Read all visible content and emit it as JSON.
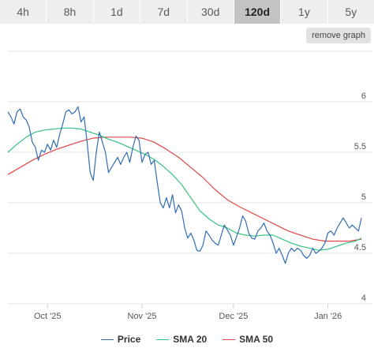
{
  "tabs": [
    {
      "label": "4h",
      "active": false
    },
    {
      "label": "8h",
      "active": false
    },
    {
      "label": "1d",
      "active": false
    },
    {
      "label": "7d",
      "active": false
    },
    {
      "label": "30d",
      "active": false
    },
    {
      "label": "120d",
      "active": true
    },
    {
      "label": "1y",
      "active": false
    },
    {
      "label": "5y",
      "active": false
    }
  ],
  "remove_graph_label": "remove graph",
  "chart_data": {
    "type": "line",
    "x_ticks": [
      {
        "label": "Oct '25",
        "t": 13
      },
      {
        "label": "Nov '25",
        "t": 44
      },
      {
        "label": "Dec '25",
        "t": 74
      },
      {
        "label": "Jan '26",
        "t": 105
      }
    ],
    "y_ticks": [
      4,
      4.5,
      5,
      5.5,
      6
    ],
    "ylim": [
      4,
      6.5
    ],
    "xlim": [
      0,
      117
    ],
    "grid": true,
    "legend_position": "bottom-center",
    "series": [
      {
        "name": "Price",
        "color": "#2f6db4",
        "points": [
          [
            0,
            5.9
          ],
          [
            1,
            5.85
          ],
          [
            2,
            5.78
          ],
          [
            3,
            5.9
          ],
          [
            4,
            5.93
          ],
          [
            5,
            5.85
          ],
          [
            6,
            5.82
          ],
          [
            7,
            5.75
          ],
          [
            8,
            5.6
          ],
          [
            9,
            5.55
          ],
          [
            10,
            5.42
          ],
          [
            11,
            5.52
          ],
          [
            12,
            5.5
          ],
          [
            13,
            5.58
          ],
          [
            14,
            5.52
          ],
          [
            15,
            5.62
          ],
          [
            16,
            5.55
          ],
          [
            17,
            5.68
          ],
          [
            18,
            5.78
          ],
          [
            19,
            5.9
          ],
          [
            20,
            5.92
          ],
          [
            21,
            5.88
          ],
          [
            22,
            5.9
          ],
          [
            23,
            5.95
          ],
          [
            24,
            5.8
          ],
          [
            25,
            5.85
          ],
          [
            26,
            5.6
          ],
          [
            27,
            5.3
          ],
          [
            28,
            5.22
          ],
          [
            29,
            5.5
          ],
          [
            30,
            5.7
          ],
          [
            31,
            5.6
          ],
          [
            32,
            5.5
          ],
          [
            33,
            5.3
          ],
          [
            34,
            5.35
          ],
          [
            35,
            5.4
          ],
          [
            36,
            5.45
          ],
          [
            37,
            5.38
          ],
          [
            38,
            5.45
          ],
          [
            39,
            5.5
          ],
          [
            40,
            5.4
          ],
          [
            41,
            5.55
          ],
          [
            42,
            5.66
          ],
          [
            43,
            5.62
          ],
          [
            44,
            5.4
          ],
          [
            45,
            5.48
          ],
          [
            46,
            5.5
          ],
          [
            47,
            5.38
          ],
          [
            48,
            5.42
          ],
          [
            49,
            5.2
          ],
          [
            50,
            5.0
          ],
          [
            51,
            4.95
          ],
          [
            52,
            5.05
          ],
          [
            53,
            4.95
          ],
          [
            54,
            5.08
          ],
          [
            55,
            4.9
          ],
          [
            56,
            4.98
          ],
          [
            57,
            4.92
          ],
          [
            58,
            4.75
          ],
          [
            59,
            4.65
          ],
          [
            60,
            4.7
          ],
          [
            61,
            4.63
          ],
          [
            62,
            4.53
          ],
          [
            63,
            4.52
          ],
          [
            64,
            4.58
          ],
          [
            65,
            4.72
          ],
          [
            66,
            4.68
          ],
          [
            67,
            4.63
          ],
          [
            68,
            4.6
          ],
          [
            69,
            4.58
          ],
          [
            70,
            4.68
          ],
          [
            71,
            4.78
          ],
          [
            72,
            4.73
          ],
          [
            73,
            4.68
          ],
          [
            74,
            4.58
          ],
          [
            75,
            4.66
          ],
          [
            76,
            4.75
          ],
          [
            77,
            4.87
          ],
          [
            78,
            4.82
          ],
          [
            79,
            4.7
          ],
          [
            80,
            4.65
          ],
          [
            81,
            4.64
          ],
          [
            82,
            4.72
          ],
          [
            83,
            4.75
          ],
          [
            84,
            4.8
          ],
          [
            85,
            4.72
          ],
          [
            86,
            4.68
          ],
          [
            87,
            4.6
          ],
          [
            88,
            4.5
          ],
          [
            89,
            4.55
          ],
          [
            90,
            4.48
          ],
          [
            91,
            4.4
          ],
          [
            92,
            4.5
          ],
          [
            93,
            4.55
          ],
          [
            94,
            4.52
          ],
          [
            95,
            4.55
          ],
          [
            96,
            4.53
          ],
          [
            97,
            4.48
          ],
          [
            98,
            4.45
          ],
          [
            99,
            4.48
          ],
          [
            100,
            4.55
          ],
          [
            101,
            4.5
          ],
          [
            102,
            4.52
          ],
          [
            103,
            4.55
          ],
          [
            104,
            4.6
          ],
          [
            105,
            4.7
          ],
          [
            106,
            4.72
          ],
          [
            107,
            4.68
          ],
          [
            108,
            4.75
          ],
          [
            109,
            4.8
          ],
          [
            110,
            4.85
          ],
          [
            111,
            4.8
          ],
          [
            112,
            4.75
          ],
          [
            113,
            4.78
          ],
          [
            114,
            4.75
          ],
          [
            115,
            4.72
          ],
          [
            116,
            4.85
          ]
        ]
      },
      {
        "name": "SMA 20",
        "color": "#37c080",
        "points": [
          [
            0,
            5.5
          ],
          [
            3,
            5.58
          ],
          [
            6,
            5.65
          ],
          [
            9,
            5.7
          ],
          [
            12,
            5.72
          ],
          [
            15,
            5.73
          ],
          [
            18,
            5.74
          ],
          [
            21,
            5.74
          ],
          [
            24,
            5.73
          ],
          [
            27,
            5.7
          ],
          [
            30,
            5.67
          ],
          [
            33,
            5.63
          ],
          [
            36,
            5.6
          ],
          [
            39,
            5.56
          ],
          [
            42,
            5.52
          ],
          [
            45,
            5.48
          ],
          [
            48,
            5.43
          ],
          [
            51,
            5.36
          ],
          [
            54,
            5.28
          ],
          [
            57,
            5.18
          ],
          [
            60,
            5.05
          ],
          [
            63,
            4.92
          ],
          [
            66,
            4.84
          ],
          [
            69,
            4.78
          ],
          [
            72,
            4.75
          ],
          [
            75,
            4.7
          ],
          [
            78,
            4.68
          ],
          [
            81,
            4.67
          ],
          [
            84,
            4.68
          ],
          [
            87,
            4.68
          ],
          [
            90,
            4.64
          ],
          [
            93,
            4.6
          ],
          [
            96,
            4.57
          ],
          [
            99,
            4.55
          ],
          [
            102,
            4.53
          ],
          [
            105,
            4.54
          ],
          [
            108,
            4.57
          ],
          [
            111,
            4.6
          ],
          [
            114,
            4.62
          ],
          [
            116,
            4.65
          ]
        ]
      },
      {
        "name": "SMA 50",
        "color": "#e04848",
        "points": [
          [
            0,
            5.28
          ],
          [
            4,
            5.35
          ],
          [
            8,
            5.42
          ],
          [
            12,
            5.48
          ],
          [
            16,
            5.53
          ],
          [
            20,
            5.57
          ],
          [
            24,
            5.61
          ],
          [
            28,
            5.64
          ],
          [
            32,
            5.65
          ],
          [
            36,
            5.65
          ],
          [
            40,
            5.65
          ],
          [
            44,
            5.64
          ],
          [
            48,
            5.6
          ],
          [
            52,
            5.53
          ],
          [
            56,
            5.45
          ],
          [
            60,
            5.35
          ],
          [
            64,
            5.25
          ],
          [
            68,
            5.13
          ],
          [
            72,
            5.03
          ],
          [
            76,
            4.96
          ],
          [
            80,
            4.9
          ],
          [
            84,
            4.84
          ],
          [
            88,
            4.78
          ],
          [
            92,
            4.72
          ],
          [
            96,
            4.68
          ],
          [
            100,
            4.64
          ],
          [
            104,
            4.62
          ],
          [
            108,
            4.62
          ],
          [
            112,
            4.62
          ],
          [
            116,
            4.64
          ]
        ]
      }
    ]
  }
}
